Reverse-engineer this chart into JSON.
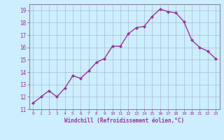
{
  "x": [
    0,
    1,
    2,
    3,
    4,
    5,
    6,
    7,
    8,
    9,
    10,
    11,
    12,
    13,
    14,
    15,
    16,
    17,
    18,
    19,
    20,
    21,
    22,
    23
  ],
  "y": [
    11.5,
    12.0,
    12.5,
    12.0,
    12.7,
    13.7,
    13.5,
    14.1,
    14.8,
    15.1,
    16.1,
    16.1,
    17.1,
    17.6,
    17.7,
    18.5,
    19.1,
    18.9,
    18.8,
    18.1,
    16.6,
    16.0,
    15.7,
    15.1
  ],
  "xlabel": "Windchill (Refroidissement éolien,°C)",
  "ylim": [
    11,
    19.5
  ],
  "xlim": [
    -0.5,
    23.5
  ],
  "yticks": [
    11,
    12,
    13,
    14,
    15,
    16,
    17,
    18,
    19
  ],
  "xticks": [
    0,
    1,
    2,
    3,
    4,
    5,
    6,
    7,
    8,
    9,
    10,
    11,
    12,
    13,
    14,
    15,
    16,
    17,
    18,
    19,
    20,
    21,
    22,
    23
  ],
  "line_color": "#993399",
  "marker_color": "#993399",
  "bg_color": "#cceeff",
  "grid_color": "#aabbcc",
  "spine_color": "#888899",
  "tick_color": "#993399",
  "label_color": "#993399"
}
